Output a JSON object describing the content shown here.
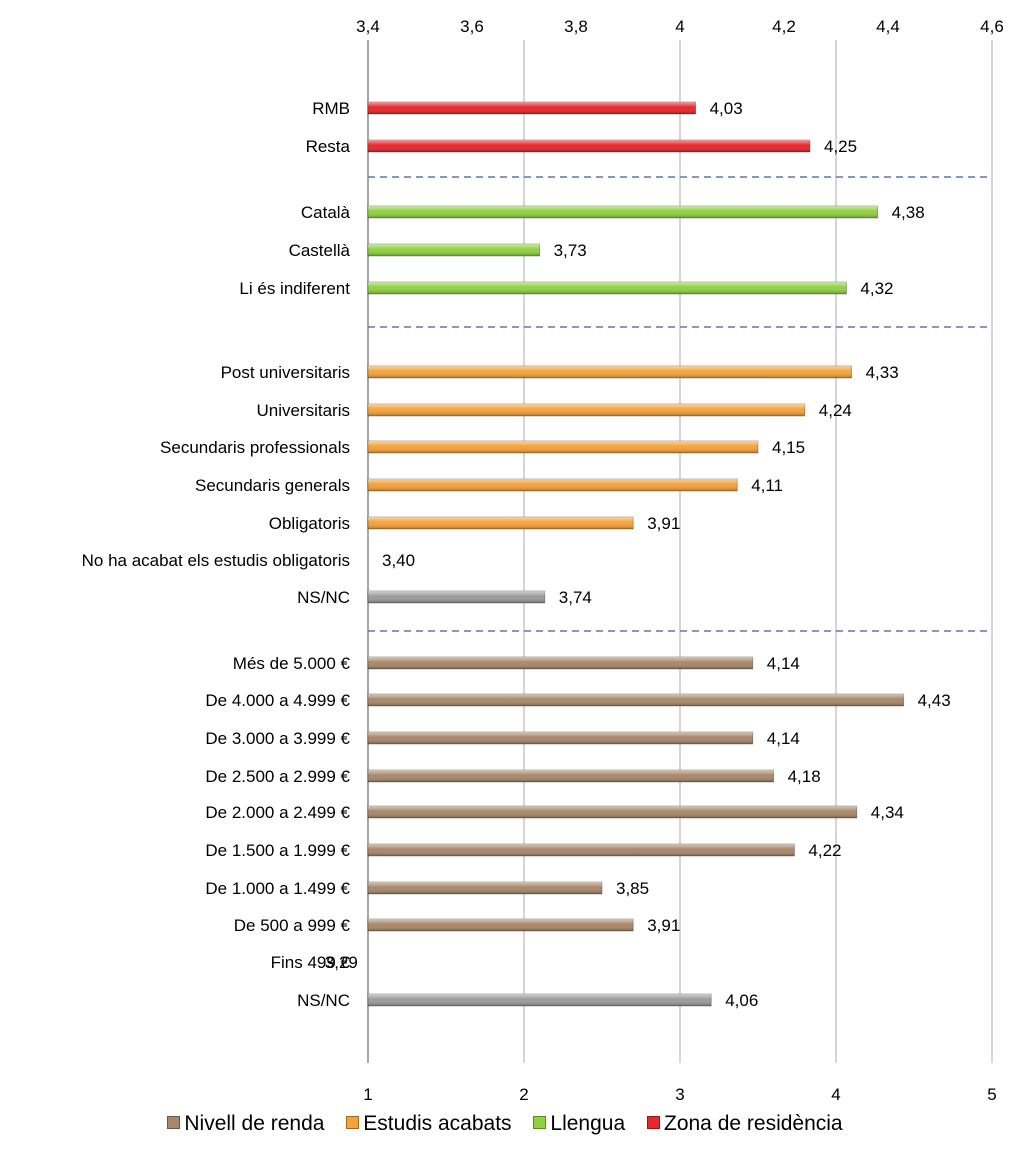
{
  "chart_data": {
    "type": "bar",
    "orientation": "horizontal",
    "title": "",
    "top_axis": {
      "min": 3.4,
      "max": 4.6,
      "step": 0.2,
      "tick_labels": [
        "3,4",
        "3,6",
        "3,8",
        "4",
        "4,2",
        "4,4",
        "4,6"
      ]
    },
    "bottom_axis": {
      "min": 1,
      "max": 5,
      "step": 1,
      "tick_labels": [
        "1",
        "2",
        "3",
        "4",
        "5"
      ]
    },
    "grid": true,
    "legend_position": "bottom",
    "series_colors": {
      "Zona de residència": "#e8262b",
      "Llengua": "#8fd13f",
      "Estudis acabats": "#f4a23a",
      "Nivell de renda": "#a8876a",
      "NS/NC": "#9a9a9a"
    },
    "bars": [
      {
        "category": "RMB",
        "value": 4.03,
        "label": "4,03",
        "series": "Zona de residència"
      },
      {
        "category": "Resta",
        "value": 4.25,
        "label": "4,25",
        "series": "Zona de residència"
      },
      {
        "category": "Català",
        "value": 4.38,
        "label": "4,38",
        "series": "Llengua"
      },
      {
        "category": "Castellà",
        "value": 3.73,
        "label": "3,73",
        "series": "Llengua"
      },
      {
        "category": "Li és indiferent",
        "value": 4.32,
        "label": "4,32",
        "series": "Llengua"
      },
      {
        "category": "Post universitaris",
        "value": 4.33,
        "label": "4,33",
        "series": "Estudis acabats"
      },
      {
        "category": "Universitaris",
        "value": 4.24,
        "label": "4,24",
        "series": "Estudis acabats"
      },
      {
        "category": "Secundaris professionals",
        "value": 4.15,
        "label": "4,15",
        "series": "Estudis acabats"
      },
      {
        "category": "Secundaris generals",
        "value": 4.11,
        "label": "4,11",
        "series": "Estudis acabats"
      },
      {
        "category": "Obligatoris",
        "value": 3.91,
        "label": "3,91",
        "series": "Estudis acabats"
      },
      {
        "category": "No ha acabat els estudis obligatoris",
        "value": 3.4,
        "label": "3,40",
        "series": "Estudis acabats"
      },
      {
        "category": "NS/NC",
        "value": 3.74,
        "label": "3,74",
        "series": "NS/NC"
      },
      {
        "category": "Més de 5.000 €",
        "value": 4.14,
        "label": "4,14",
        "series": "Nivell de renda"
      },
      {
        "category": "De 4.000 a 4.999 €",
        "value": 4.43,
        "label": "4,43",
        "series": "Nivell de renda"
      },
      {
        "category": "De 3.000 a 3.999 €",
        "value": 4.14,
        "label": "4,14",
        "series": "Nivell de renda"
      },
      {
        "category": "De 2.500 a 2.999 €",
        "value": 4.18,
        "label": "4,18",
        "series": "Nivell de renda"
      },
      {
        "category": "De 2.000 a 2.499 €",
        "value": 4.34,
        "label": "4,34",
        "series": "Nivell de renda"
      },
      {
        "category": "De 1.500 a 1.999 €",
        "value": 4.22,
        "label": "4,22",
        "series": "Nivell de renda"
      },
      {
        "category": "De 1.000 a 1.499 €",
        "value": 3.85,
        "label": "3,85",
        "series": "Nivell de renda"
      },
      {
        "category": "De 500 a 999 €",
        "value": 3.91,
        "label": "3,91",
        "series": "Nivell de renda"
      },
      {
        "category": "Fins 499 €",
        "value": 3.29,
        "label": "3,29",
        "series": "Nivell de renda"
      },
      {
        "category": "NS/NC",
        "value": 4.06,
        "label": "4,06",
        "series": "NS/NC"
      }
    ],
    "legend": [
      {
        "name": "Nivell de renda",
        "color": "#a8876a"
      },
      {
        "name": "Estudis acabats",
        "color": "#f4a23a"
      },
      {
        "name": "Llengua",
        "color": "#8fd13f"
      },
      {
        "name": "Zona de residència",
        "color": "#e8262b"
      }
    ]
  }
}
